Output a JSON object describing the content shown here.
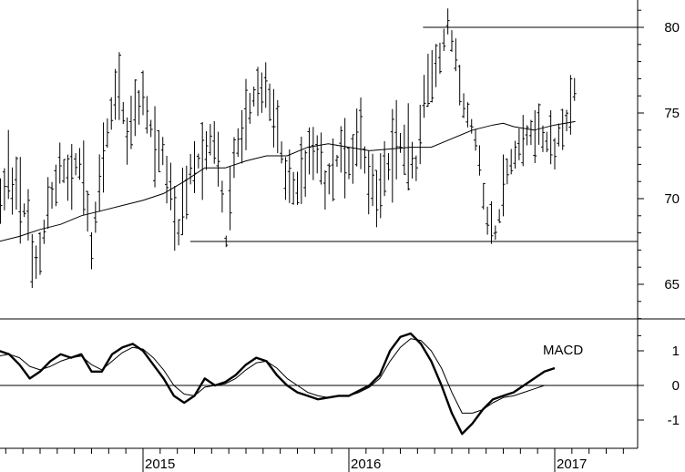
{
  "chart_data": [
    {
      "type": "ohlc",
      "panel": "price",
      "ylim": [
        62,
        81.5
      ],
      "y_ticks": [
        80,
        75,
        70,
        65
      ],
      "grid": false,
      "x_unit": "year",
      "x_range": [
        2014,
        2017.45
      ],
      "y_axis_side": "right",
      "horizontal_lines": [
        {
          "y": 80,
          "x_start": 2016.36,
          "x_end": 2017.45
        },
        {
          "y": 67.5,
          "x_start": 2015.23,
          "x_end": 2017.45
        }
      ],
      "moving_average": [
        [
          2014.0,
          65.0
        ],
        [
          2014.1,
          66.0
        ],
        [
          2014.2,
          67.0
        ],
        [
          2014.3,
          67.5
        ],
        [
          2014.4,
          67.8
        ],
        [
          2014.5,
          68.2
        ],
        [
          2014.6,
          68.5
        ],
        [
          2014.7,
          69.0
        ],
        [
          2014.8,
          69.3
        ],
        [
          2014.9,
          69.6
        ],
        [
          2015.0,
          69.9
        ],
        [
          2015.1,
          70.3
        ],
        [
          2015.2,
          71.0
        ],
        [
          2015.3,
          71.8
        ],
        [
          2015.4,
          71.8
        ],
        [
          2015.5,
          72.2
        ],
        [
          2015.6,
          72.5
        ],
        [
          2015.7,
          72.5
        ],
        [
          2015.8,
          73.0
        ],
        [
          2015.9,
          73.2
        ],
        [
          2016.0,
          73.0
        ],
        [
          2016.1,
          72.8
        ],
        [
          2016.2,
          72.9
        ],
        [
          2016.3,
          73.0
        ],
        [
          2016.4,
          73.0
        ],
        [
          2016.5,
          73.5
        ],
        [
          2016.6,
          74.0
        ],
        [
          2016.7,
          74.3
        ],
        [
          2016.75,
          74.4
        ],
        [
          2016.8,
          74.2
        ],
        [
          2016.9,
          74.0
        ],
        [
          2017.0,
          74.3
        ],
        [
          2017.1,
          74.5
        ]
      ],
      "price_path": [
        [
          2014.0,
          69.0
        ],
        [
          2014.02,
          71.0
        ],
        [
          2014.05,
          70.5
        ],
        [
          2014.08,
          69.5
        ],
        [
          2014.12,
          69.0
        ],
        [
          2014.16,
          69.4
        ],
        [
          2014.2,
          69.0
        ],
        [
          2014.25,
          67.5
        ],
        [
          2014.3,
          69.5
        ],
        [
          2014.35,
          71.5
        ],
        [
          2014.4,
          70.0
        ],
        [
          2014.45,
          68.5
        ],
        [
          2014.47,
          65.5
        ],
        [
          2014.5,
          67.0
        ],
        [
          2014.55,
          70.0
        ],
        [
          2014.6,
          72.0
        ],
        [
          2014.65,
          71.0
        ],
        [
          2014.68,
          72.5
        ],
        [
          2014.72,
          70.5
        ],
        [
          2014.75,
          67.0
        ],
        [
          2014.8,
          72.0
        ],
        [
          2014.85,
          75.5
        ],
        [
          2014.88,
          76.5
        ],
        [
          2014.92,
          73.5
        ],
        [
          2014.97,
          75.5
        ],
        [
          2015.0,
          76.0
        ],
        [
          2015.05,
          73.5
        ],
        [
          2015.1,
          72.5
        ],
        [
          2015.15,
          69.0
        ],
        [
          2015.18,
          68.0
        ],
        [
          2015.2,
          70.5
        ],
        [
          2015.23,
          71.5
        ],
        [
          2015.3,
          72.5
        ],
        [
          2015.35,
          74.0
        ],
        [
          2015.38,
          71.0
        ],
        [
          2015.4,
          67.0
        ],
        [
          2015.45,
          73.0
        ],
        [
          2015.5,
          75.0
        ],
        [
          2015.55,
          76.0
        ],
        [
          2015.6,
          76.3
        ],
        [
          2015.65,
          74.5
        ],
        [
          2015.7,
          71.0
        ],
        [
          2015.75,
          70.5
        ],
        [
          2015.8,
          72.0
        ],
        [
          2015.85,
          73.0
        ],
        [
          2015.88,
          71.0
        ],
        [
          2015.92,
          71.5
        ],
        [
          2015.97,
          73.0
        ],
        [
          2016.0,
          72.0
        ],
        [
          2016.05,
          74.0
        ],
        [
          2016.1,
          71.0
        ],
        [
          2016.13,
          70.0
        ],
        [
          2016.18,
          71.5
        ],
        [
          2016.22,
          73.0
        ],
        [
          2016.26,
          73.5
        ],
        [
          2016.3,
          72.5
        ],
        [
          2016.33,
          71.5
        ],
        [
          2016.37,
          76.0
        ],
        [
          2016.4,
          77.5
        ],
        [
          2016.45,
          78.5
        ],
        [
          2016.48,
          80.0
        ],
        [
          2016.52,
          78.5
        ],
        [
          2016.55,
          76.0
        ],
        [
          2016.58,
          74.5
        ],
        [
          2016.62,
          73.5
        ],
        [
          2016.65,
          70.5
        ],
        [
          2016.68,
          68.5
        ],
        [
          2016.72,
          68.0
        ],
        [
          2016.76,
          71.5
        ],
        [
          2016.8,
          72.5
        ],
        [
          2016.85,
          73.5
        ],
        [
          2016.9,
          74.0
        ],
        [
          2016.95,
          73.5
        ],
        [
          2017.0,
          73.0
        ],
        [
          2017.05,
          74.5
        ],
        [
          2017.1,
          76.5
        ]
      ]
    },
    {
      "type": "line",
      "panel": "indicator",
      "title": "MACD",
      "ylim": [
        -1.85,
        1.95
      ],
      "y_ticks": [
        1,
        0,
        -1
      ],
      "zero_line": true,
      "x_unit": "year",
      "x_ticks": [
        2015,
        2016,
        2017
      ],
      "series": [
        {
          "role": "macd",
          "points": [
            [
              2014.0,
              0.9
            ],
            [
              2014.05,
              1.1
            ],
            [
              2014.1,
              1.0
            ],
            [
              2014.15,
              0.8
            ],
            [
              2014.2,
              0.7
            ],
            [
              2014.25,
              0.8
            ],
            [
              2014.3,
              1.0
            ],
            [
              2014.35,
              0.9
            ],
            [
              2014.4,
              0.6
            ],
            [
              2014.45,
              0.2
            ],
            [
              2014.5,
              0.4
            ],
            [
              2014.55,
              0.7
            ],
            [
              2014.6,
              0.9
            ],
            [
              2014.65,
              0.8
            ],
            [
              2014.7,
              0.9
            ],
            [
              2014.75,
              0.4
            ],
            [
              2014.8,
              0.4
            ],
            [
              2014.85,
              0.9
            ],
            [
              2014.9,
              1.1
            ],
            [
              2014.95,
              1.2
            ],
            [
              2015.0,
              1.0
            ],
            [
              2015.05,
              0.6
            ],
            [
              2015.1,
              0.2
            ],
            [
              2015.15,
              -0.3
            ],
            [
              2015.2,
              -0.5
            ],
            [
              2015.25,
              -0.3
            ],
            [
              2015.3,
              0.2
            ],
            [
              2015.35,
              0.0
            ],
            [
              2015.4,
              0.1
            ],
            [
              2015.45,
              0.3
            ],
            [
              2015.5,
              0.6
            ],
            [
              2015.55,
              0.8
            ],
            [
              2015.6,
              0.7
            ],
            [
              2015.65,
              0.3
            ],
            [
              2015.7,
              0.0
            ],
            [
              2015.75,
              -0.2
            ],
            [
              2015.8,
              -0.3
            ],
            [
              2015.85,
              -0.4
            ],
            [
              2015.9,
              -0.35
            ],
            [
              2015.95,
              -0.3
            ],
            [
              2016.0,
              -0.3
            ],
            [
              2016.05,
              -0.15
            ],
            [
              2016.1,
              0.0
            ],
            [
              2016.15,
              0.3
            ],
            [
              2016.2,
              1.0
            ],
            [
              2016.25,
              1.4
            ],
            [
              2016.3,
              1.5
            ],
            [
              2016.35,
              1.2
            ],
            [
              2016.4,
              0.7
            ],
            [
              2016.45,
              0.0
            ],
            [
              2016.5,
              -0.8
            ],
            [
              2016.55,
              -1.4
            ],
            [
              2016.6,
              -1.1
            ],
            [
              2016.65,
              -0.7
            ],
            [
              2016.7,
              -0.4
            ],
            [
              2016.75,
              -0.3
            ],
            [
              2016.8,
              -0.2
            ],
            [
              2016.85,
              0.0
            ],
            [
              2016.9,
              0.2
            ],
            [
              2016.95,
              0.4
            ],
            [
              2017.0,
              0.5
            ]
          ]
        },
        {
          "role": "signal",
          "points": [
            [
              2014.0,
              0.7
            ],
            [
              2014.05,
              0.9
            ],
            [
              2014.1,
              1.0
            ],
            [
              2014.15,
              0.95
            ],
            [
              2014.2,
              0.85
            ],
            [
              2014.25,
              0.8
            ],
            [
              2014.3,
              0.85
            ],
            [
              2014.35,
              0.9
            ],
            [
              2014.4,
              0.8
            ],
            [
              2014.45,
              0.55
            ],
            [
              2014.5,
              0.45
            ],
            [
              2014.55,
              0.55
            ],
            [
              2014.6,
              0.7
            ],
            [
              2014.65,
              0.8
            ],
            [
              2014.7,
              0.85
            ],
            [
              2014.75,
              0.6
            ],
            [
              2014.8,
              0.45
            ],
            [
              2014.85,
              0.7
            ],
            [
              2014.9,
              0.95
            ],
            [
              2014.95,
              1.1
            ],
            [
              2015.0,
              1.05
            ],
            [
              2015.05,
              0.8
            ],
            [
              2015.1,
              0.45
            ],
            [
              2015.15,
              0.0
            ],
            [
              2015.2,
              -0.25
            ],
            [
              2015.25,
              -0.3
            ],
            [
              2015.3,
              -0.05
            ],
            [
              2015.35,
              0.0
            ],
            [
              2015.4,
              0.05
            ],
            [
              2015.45,
              0.2
            ],
            [
              2015.5,
              0.45
            ],
            [
              2015.55,
              0.65
            ],
            [
              2015.6,
              0.7
            ],
            [
              2015.65,
              0.5
            ],
            [
              2015.7,
              0.2
            ],
            [
              2015.75,
              0.0
            ],
            [
              2015.8,
              -0.2
            ],
            [
              2015.85,
              -0.3
            ],
            [
              2015.9,
              -0.35
            ],
            [
              2015.95,
              -0.3
            ],
            [
              2016.0,
              -0.3
            ],
            [
              2016.05,
              -0.2
            ],
            [
              2016.1,
              -0.05
            ],
            [
              2016.15,
              0.2
            ],
            [
              2016.2,
              0.7
            ],
            [
              2016.25,
              1.1
            ],
            [
              2016.3,
              1.35
            ],
            [
              2016.35,
              1.3
            ],
            [
              2016.4,
              1.0
            ],
            [
              2016.45,
              0.5
            ],
            [
              2016.5,
              -0.2
            ],
            [
              2016.55,
              -0.8
            ],
            [
              2016.6,
              -0.8
            ],
            [
              2016.65,
              -0.7
            ],
            [
              2016.7,
              -0.5
            ],
            [
              2016.75,
              -0.35
            ],
            [
              2016.8,
              -0.3
            ],
            [
              2016.85,
              -0.2
            ],
            [
              2016.9,
              -0.1
            ],
            [
              2016.95,
              0.0
            ]
          ]
        }
      ]
    }
  ]
}
